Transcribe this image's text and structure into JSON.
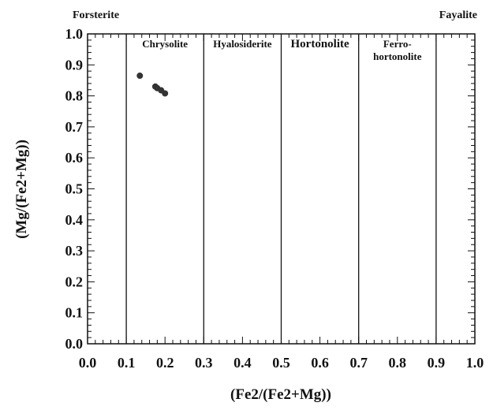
{
  "chart_data": {
    "type": "scatter",
    "xlabel": "(Fe2/(Fe2+Mg))",
    "ylabel": "(Mg/(Fe2+Mg))",
    "xlim": [
      0.0,
      1.0
    ],
    "ylim": [
      0.0,
      1.0
    ],
    "xticks": [
      "0.0",
      "0.1",
      "0.2",
      "0.3",
      "0.4",
      "0.5",
      "0.6",
      "0.7",
      "0.8",
      "0.9",
      "1.0"
    ],
    "yticks": [
      "0.0",
      "0.1",
      "0.2",
      "0.3",
      "0.4",
      "0.5",
      "0.6",
      "0.7",
      "0.8",
      "0.9",
      "1.0"
    ],
    "grid": false,
    "endmember_left": "Forsterite",
    "endmember_right": "Fayalite",
    "field_boundaries": [
      0.1,
      0.3,
      0.5,
      0.7,
      0.9
    ],
    "fields": [
      {
        "lines": [
          "Chrysolite"
        ],
        "x_start": 0.1,
        "x_end": 0.3
      },
      {
        "lines": [
          "Hyalosiderite"
        ],
        "x_start": 0.3,
        "x_end": 0.5
      },
      {
        "lines": [
          "Hortonolite"
        ],
        "x_start": 0.5,
        "x_end": 0.7
      },
      {
        "lines": [
          "Ferro-",
          "hortonolite"
        ],
        "x_start": 0.7,
        "x_end": 0.9
      }
    ],
    "points": [
      {
        "x": 0.135,
        "y": 0.865
      },
      {
        "x": 0.175,
        "y": 0.83
      },
      {
        "x": 0.18,
        "y": 0.825
      },
      {
        "x": 0.19,
        "y": 0.818
      },
      {
        "x": 0.2,
        "y": 0.808
      }
    ],
    "marker_color": "#333333"
  }
}
